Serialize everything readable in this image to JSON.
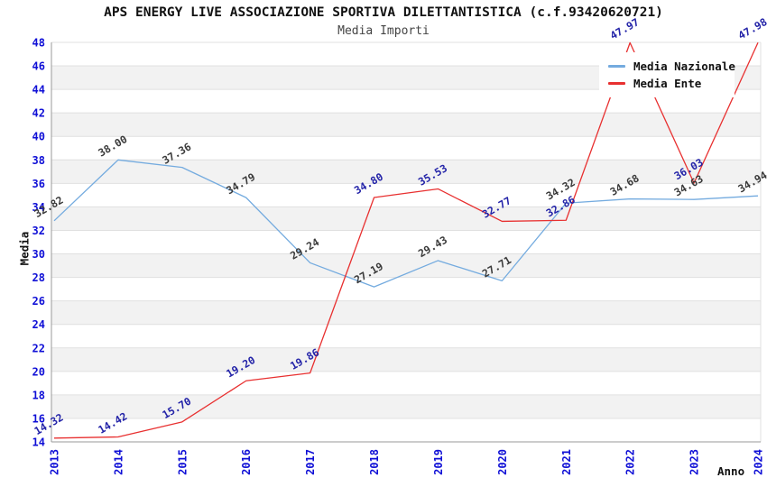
{
  "page": {
    "title": "APS ENERGY LIVE ASSOCIAZIONE SPORTIVA DILETTANTISTICA (c.f.93420620721)",
    "subtitle": "Media Importi"
  },
  "chart_data": {
    "type": "line",
    "title": "APS ENERGY LIVE ASSOCIAZIONE SPORTIVA DILETTANTISTICA (c.f.93420620721)",
    "subtitle": "Media Importi",
    "xlabel": "Anno",
    "ylabel": "Media",
    "x": [
      2013,
      2014,
      2015,
      2016,
      2017,
      2018,
      2019,
      2020,
      2021,
      2022,
      2023,
      2024
    ],
    "ylim": [
      14,
      48
    ],
    "ytick_step": 2,
    "grid": "horizontal bands, light gray alternating every 2 units",
    "legend_position": "top-right",
    "series": [
      {
        "name": "Media Nazionale",
        "color": "#74abdf",
        "label_color": "#3a3a3a",
        "values": [
          32.82,
          38.0,
          37.36,
          34.79,
          29.24,
          27.19,
          29.43,
          27.71,
          34.32,
          34.68,
          34.63,
          34.94
        ],
        "labels": [
          "32.82",
          "38.00",
          "37.36",
          "34.79",
          "29.24",
          "27.19",
          "29.43",
          "27.71",
          "34.32",
          "34.68",
          "34.63",
          "34.94"
        ]
      },
      {
        "name": "Media Ente",
        "color": "#e83030",
        "label_color": "#2323a8",
        "values": [
          14.32,
          14.42,
          15.7,
          19.2,
          19.86,
          34.8,
          35.53,
          32.77,
          32.86,
          47.97,
          36.03,
          47.98
        ],
        "labels": [
          "14.32",
          "14.42",
          "15.70",
          "19.20",
          "19.86",
          "34.80",
          "35.53",
          "32.77",
          "32.86",
          "47.97",
          "36.03",
          "47.98"
        ]
      }
    ],
    "axis_colors": {
      "tick_label_color": "#0f0fd6",
      "axis_line_color": "#999999",
      "gridline_color": "#e0e0e0",
      "band_color": "#f2f2f2"
    }
  }
}
